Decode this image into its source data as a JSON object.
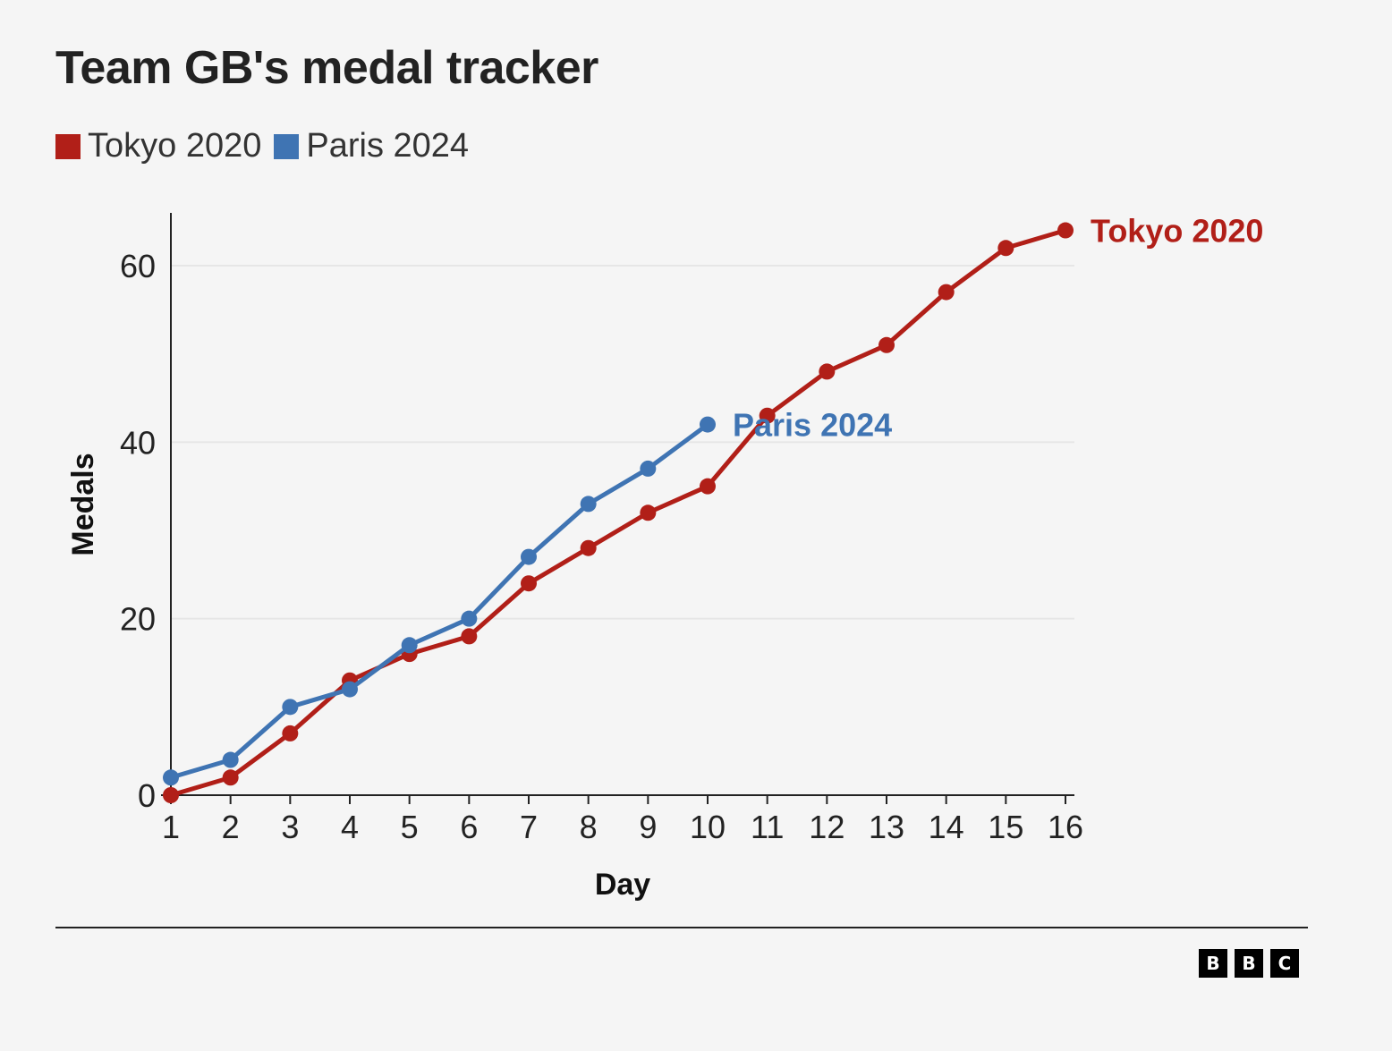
{
  "title": "Team GB's medal tracker",
  "legend": [
    {
      "name": "Tokyo 2020",
      "color": "#b11f18"
    },
    {
      "name": "Paris 2024",
      "color": "#3f74b3"
    }
  ],
  "logo": {
    "letters": [
      "B",
      "B",
      "C"
    ]
  },
  "chart_data": {
    "type": "line",
    "title": "Team GB's medal tracker",
    "xlabel": "Day",
    "ylabel": "Medals",
    "xlim": [
      1,
      16
    ],
    "ylim": [
      0,
      66
    ],
    "x_ticks": [
      1,
      2,
      3,
      4,
      5,
      6,
      7,
      8,
      9,
      10,
      11,
      12,
      13,
      14,
      15,
      16
    ],
    "y_ticks": [
      0,
      20,
      40,
      60
    ],
    "grid": "horizontal",
    "legend_position": "top-left",
    "series": [
      {
        "name": "Tokyo 2020",
        "color": "#b11f18",
        "x": [
          1,
          2,
          3,
          4,
          5,
          6,
          7,
          8,
          9,
          10,
          11,
          12,
          13,
          14,
          15,
          16
        ],
        "values": [
          0,
          2,
          7,
          13,
          16,
          18,
          24,
          28,
          32,
          35,
          43,
          48,
          51,
          57,
          62,
          64
        ],
        "end_label": "Tokyo 2020"
      },
      {
        "name": "Paris 2024",
        "color": "#3f74b3",
        "x": [
          1,
          2,
          3,
          4,
          5,
          6,
          7,
          8,
          9,
          10
        ],
        "values": [
          2,
          4,
          10,
          12,
          17,
          20,
          27,
          33,
          37,
          42
        ],
        "end_label": "Paris 2024"
      }
    ]
  }
}
